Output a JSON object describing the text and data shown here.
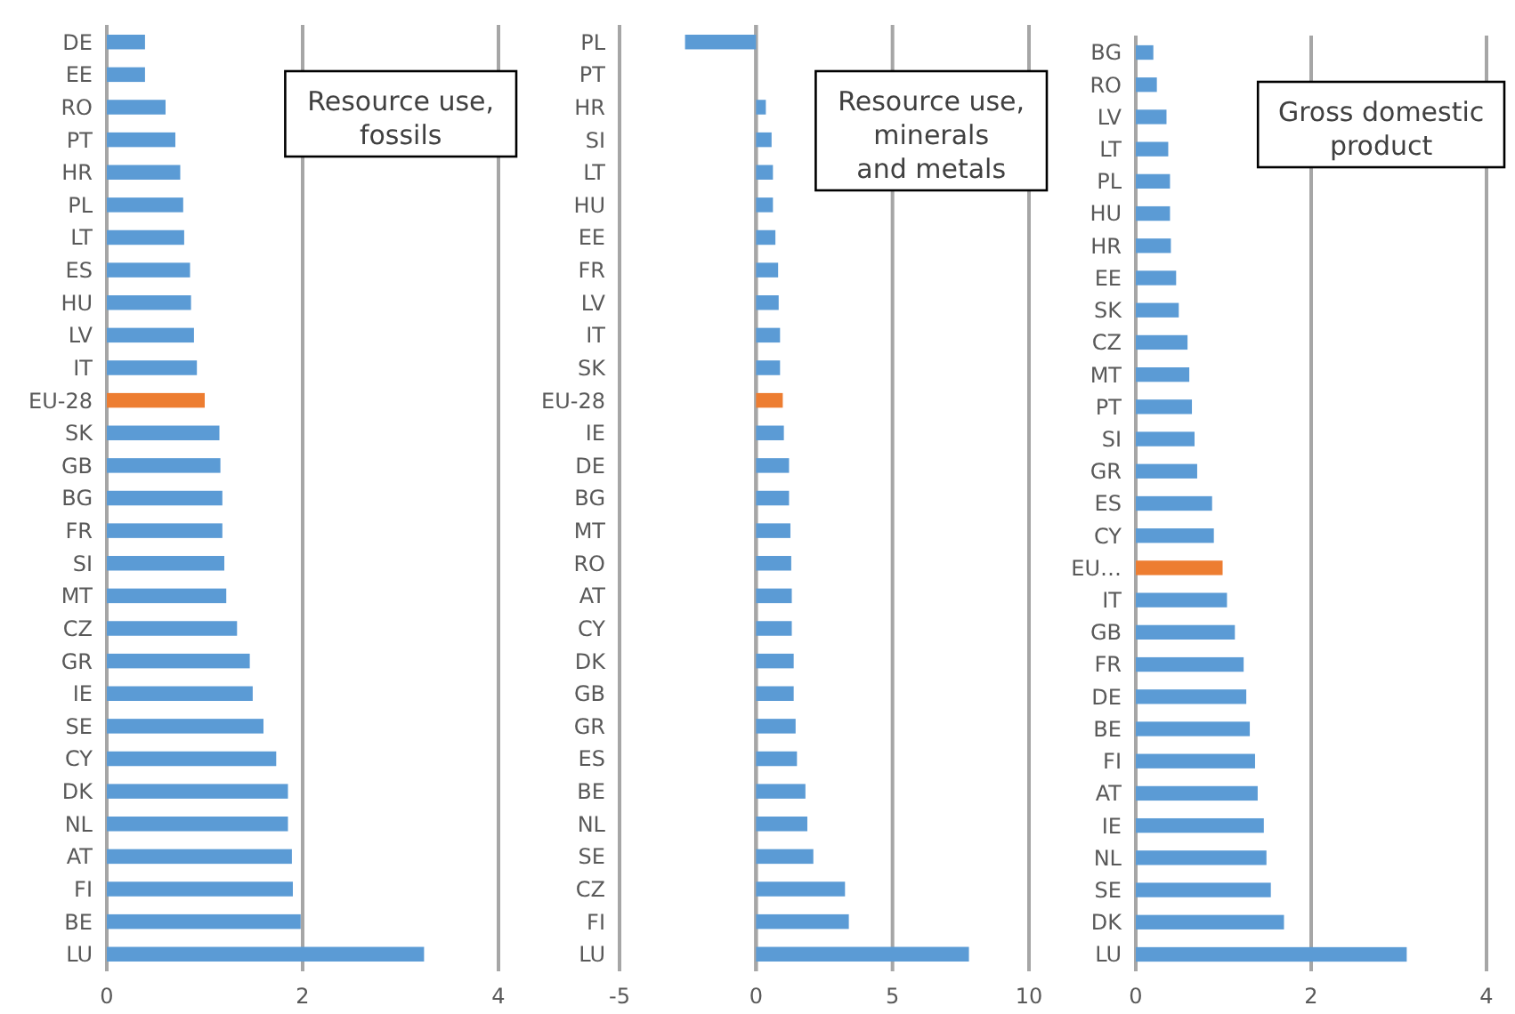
{
  "chart_data": [
    {
      "type": "bar",
      "orientation": "horizontal",
      "title": "Resource use,\nfossils",
      "categories": [
        "DE",
        "EE",
        "RO",
        "PT",
        "HR",
        "PL",
        "LT",
        "ES",
        "HU",
        "LV",
        "IT",
        "EU-28",
        "SK",
        "GB",
        "BG",
        "FR",
        "SI",
        "MT",
        "CZ",
        "GR",
        "IE",
        "SE",
        "CY",
        "DK",
        "NL",
        "AT",
        "FI",
        "BE",
        "LU"
      ],
      "values": [
        0.39,
        0.39,
        0.6,
        0.7,
        0.75,
        0.78,
        0.79,
        0.85,
        0.86,
        0.89,
        0.92,
        1.0,
        1.15,
        1.16,
        1.18,
        1.18,
        1.2,
        1.22,
        1.33,
        1.46,
        1.49,
        1.6,
        1.73,
        1.85,
        1.85,
        1.89,
        1.9,
        1.98,
        3.24
      ],
      "colors": [
        "#5b9bd5",
        "#5b9bd5",
        "#5b9bd5",
        "#5b9bd5",
        "#5b9bd5",
        "#5b9bd5",
        "#5b9bd5",
        "#5b9bd5",
        "#5b9bd5",
        "#5b9bd5",
        "#5b9bd5",
        "#ed7d31",
        "#5b9bd5",
        "#5b9bd5",
        "#5b9bd5",
        "#5b9bd5",
        "#5b9bd5",
        "#5b9bd5",
        "#5b9bd5",
        "#5b9bd5",
        "#5b9bd5",
        "#5b9bd5",
        "#5b9bd5",
        "#5b9bd5",
        "#5b9bd5",
        "#5b9bd5",
        "#5b9bd5",
        "#5b9bd5",
        "#5b9bd5"
      ],
      "xlim": [
        0,
        4
      ],
      "xticks": [
        0,
        2,
        4
      ],
      "grid": "x"
    },
    {
      "type": "bar",
      "orientation": "horizontal",
      "title": "Resource use,\nminerals\nand metals",
      "categories": [
        "PL",
        "PT",
        "HR",
        "SI",
        "LT",
        "HU",
        "EE",
        "FR",
        "LV",
        "IT",
        "SK",
        "EU-28",
        "IE",
        "DE",
        "BG",
        "MT",
        "RO",
        "AT",
        "CY",
        "DK",
        "GB",
        "GR",
        "ES",
        "BE",
        "NL",
        "SE",
        "CZ",
        "FI",
        "LU"
      ],
      "values": [
        -2.6,
        0,
        0.36,
        0.57,
        0.62,
        0.62,
        0.71,
        0.81,
        0.83,
        0.88,
        0.88,
        0.98,
        1.02,
        1.21,
        1.21,
        1.26,
        1.29,
        1.31,
        1.31,
        1.38,
        1.38,
        1.45,
        1.5,
        1.81,
        1.88,
        2.1,
        3.26,
        3.4,
        7.8
      ],
      "colors": [
        "#5b9bd5",
        "#5b9bd5",
        "#5b9bd5",
        "#5b9bd5",
        "#5b9bd5",
        "#5b9bd5",
        "#5b9bd5",
        "#5b9bd5",
        "#5b9bd5",
        "#5b9bd5",
        "#5b9bd5",
        "#ed7d31",
        "#5b9bd5",
        "#5b9bd5",
        "#5b9bd5",
        "#5b9bd5",
        "#5b9bd5",
        "#5b9bd5",
        "#5b9bd5",
        "#5b9bd5",
        "#5b9bd5",
        "#5b9bd5",
        "#5b9bd5",
        "#5b9bd5",
        "#5b9bd5",
        "#5b9bd5",
        "#5b9bd5",
        "#5b9bd5",
        "#5b9bd5"
      ],
      "xlim": [
        -5,
        10
      ],
      "xticks": [
        -5,
        0,
        5,
        10
      ],
      "grid": "x"
    },
    {
      "type": "bar",
      "orientation": "horizontal",
      "title": "Gross domestic\nproduct",
      "categories": [
        "BG",
        "RO",
        "LV",
        "LT",
        "PL",
        "HU",
        "HR",
        "EE",
        "SK",
        "CZ",
        "MT",
        "PT",
        "SI",
        "GR",
        "ES",
        "CY",
        "EU…",
        "IT",
        "GB",
        "FR",
        "DE",
        "BE",
        "FI",
        "AT",
        "IE",
        "NL",
        "SE",
        "DK",
        "LU"
      ],
      "values": [
        0.2,
        0.24,
        0.35,
        0.37,
        0.39,
        0.39,
        0.4,
        0.46,
        0.49,
        0.59,
        0.61,
        0.64,
        0.67,
        0.7,
        0.87,
        0.89,
        0.99,
        1.04,
        1.13,
        1.23,
        1.26,
        1.3,
        1.36,
        1.39,
        1.46,
        1.49,
        1.54,
        1.69,
        3.09
      ],
      "colors": [
        "#5b9bd5",
        "#5b9bd5",
        "#5b9bd5",
        "#5b9bd5",
        "#5b9bd5",
        "#5b9bd5",
        "#5b9bd5",
        "#5b9bd5",
        "#5b9bd5",
        "#5b9bd5",
        "#5b9bd5",
        "#5b9bd5",
        "#5b9bd5",
        "#5b9bd5",
        "#5b9bd5",
        "#5b9bd5",
        "#ed7d31",
        "#5b9bd5",
        "#5b9bd5",
        "#5b9bd5",
        "#5b9bd5",
        "#5b9bd5",
        "#5b9bd5",
        "#5b9bd5",
        "#5b9bd5",
        "#5b9bd5",
        "#5b9bd5",
        "#5b9bd5",
        "#5b9bd5"
      ],
      "xlim": [
        0,
        4
      ],
      "xticks": [
        0,
        2,
        4
      ],
      "grid": "x"
    }
  ]
}
